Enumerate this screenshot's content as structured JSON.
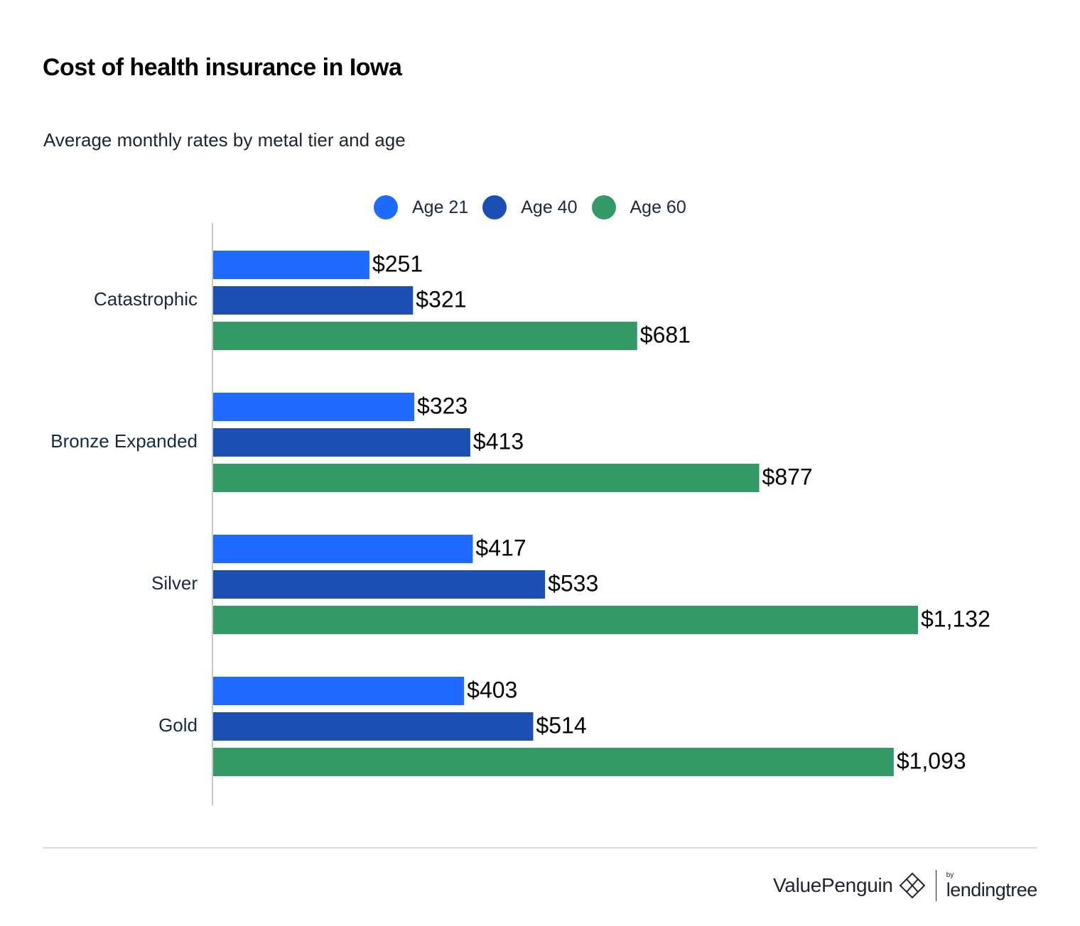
{
  "header": {
    "title": "Cost of health insurance in Iowa",
    "subtitle": "Average monthly rates by metal tier and age"
  },
  "legend": [
    {
      "label": "Age 21",
      "color": "#1f6bff"
    },
    {
      "label": "Age 40",
      "color": "#1b4fb3"
    },
    {
      "label": "Age 60",
      "color": "#339966"
    }
  ],
  "chart_data": {
    "type": "bar",
    "orientation": "horizontal",
    "title": "Cost of health insurance in Iowa",
    "subtitle": "Average monthly rates by metal tier and age",
    "categories": [
      "Catastrophic",
      "Bronze Expanded",
      "Silver",
      "Gold"
    ],
    "series": [
      {
        "name": "Age 21",
        "color": "#1f6bff",
        "values": [
          251,
          323,
          417,
          403
        ],
        "labels": [
          "$251",
          "$323",
          "$417",
          "$403"
        ]
      },
      {
        "name": "Age 40",
        "color": "#1b4fb3",
        "values": [
          321,
          413,
          533,
          514
        ],
        "labels": [
          "$321",
          "$413",
          "$533",
          "$514"
        ]
      },
      {
        "name": "Age 60",
        "color": "#339966",
        "values": [
          681,
          877,
          1132,
          1093
        ],
        "labels": [
          "$681",
          "$877",
          "$1,132",
          "$1,093"
        ]
      }
    ],
    "xlim": [
      0,
      1132
    ],
    "grid": false,
    "legend_position": "top"
  },
  "footer": {
    "brand": "ValuePenguin",
    "by": "by",
    "partner": "lendingtree"
  }
}
